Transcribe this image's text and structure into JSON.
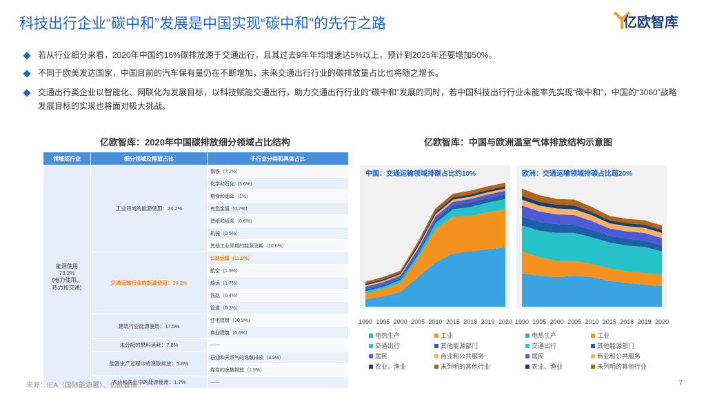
{
  "header": {
    "title": "科技出行企业“碳中和”发展是中国实现“碳中和”的先行之路",
    "logo": "亿欧智库"
  },
  "bullets": [
    "若从行业细分来看，2020年中国约16%碳排放源于交通出行，且其过去9年年均增速达5%以上，预计到2025年还要增加50%。",
    "不同于欧美发达国家，中国目前的汽车保有量仍在不断增加，未来交通出行行业的碳排放量占比也将随之增长。",
    "交通出行类企业以智能化、网联化为发展目标，以科技赋能交通出行，助力交通出行行业的“碳中和”发展的同时，若中国科技出行行业未能率先实现“碳中和”，中国的“3060”战略发展目标的实现也将面对极大挑战。"
  ],
  "left_panel": {
    "title": "亿欧智库：2020年中国碳排放细分领域占比结构"
  },
  "table": {
    "headers": [
      "领域或行业",
      "细分领域及排放占比",
      "子行业分类和具体占比"
    ],
    "first_column": [
      "能源使用",
      "73.2%",
      "(电力使用、",
      "热力和交通)"
    ],
    "groups": [
      {
        "label": "工业领域的能源使用：24.2%",
        "items": [
          "钢铁（7.2%）",
          "化学和石化（3.6%）",
          "粮食和烟草（1%）",
          "有色金属（0.7%）",
          "造纸和纸浆（0.6%）",
          "机械（0.5%）",
          "其他工业领域的能源消耗（10.6%）"
        ]
      },
      {
        "label": "交通运输行业的能源使用：16.2%",
        "items": [
          "公路运输（11.9%）",
          "航空（1.9%）",
          "船运（1.7%）",
          "铁路（0.4%）",
          "管道（0.3%）"
        ]
      },
      {
        "label": "建筑行业能源使用：17.5%",
        "items": [
          "住宅建筑（10.9%）",
          "商业建筑（6.6%）"
        ]
      },
      {
        "label": "未分配的燃料消耗：7.8%",
        "items": [
          "——"
        ]
      },
      {
        "label": "能源生产过程中的逸散排放：5.8%",
        "items": [
          "石油和天然气的逸散排放（3.9%）",
          "煤炭的逸散排放（1.9%）"
        ]
      },
      {
        "label": "农业和渔业中的能源使用：1.7%",
        "items": [
          "——"
        ]
      }
    ]
  },
  "right_panel": {
    "title": "亿欧智库：中国与欧洲温室气体排放结构示意图"
  },
  "chart_data": [
    {
      "type": "area",
      "stacked": true,
      "title": "中国：交通运输领域排碳占比约10%",
      "categories": [
        "1990",
        "1995",
        "2000",
        "2005",
        "2010",
        "2015",
        "2018",
        "2019",
        "2020"
      ],
      "series": [
        {
          "name": "电热生产",
          "color": "#3aa4e3",
          "values": [
            10,
            14,
            20,
            40,
            60,
            72,
            75,
            78,
            80
          ]
        },
        {
          "name": "工业",
          "color": "#f5921f",
          "values": [
            8,
            10,
            12,
            25,
            45,
            50,
            48,
            50,
            52
          ]
        },
        {
          "name": "交通出行",
          "color": "#26c1c9",
          "values": [
            3,
            3,
            4,
            5,
            8,
            10,
            12,
            13,
            14
          ]
        },
        {
          "name": "其他能源部门",
          "color": "#1f5fa8",
          "values": [
            2,
            2,
            2,
            3,
            4,
            5,
            6,
            6,
            6
          ]
        },
        {
          "name": "居民",
          "color": "#4f5bd5",
          "values": [
            4,
            4,
            4,
            5,
            5,
            5,
            5,
            5,
            5
          ]
        },
        {
          "name": "商业和公共服务",
          "color": "#f6b26b",
          "values": [
            2,
            2,
            2,
            3,
            3,
            3,
            3,
            3,
            3
          ]
        },
        {
          "name": "农业、渔业",
          "color": "#17406d",
          "values": [
            2,
            2,
            2,
            3,
            3,
            3,
            3,
            3,
            3
          ]
        },
        {
          "name": "未列明的其他行业",
          "color": "#b0651e",
          "values": [
            3,
            3,
            3,
            4,
            5,
            5,
            5,
            5,
            5
          ]
        }
      ]
    },
    {
      "type": "area",
      "stacked": true,
      "title": "欧洲：交通运输领域排碳占比超20%",
      "categories": [
        "1990",
        "1995",
        "2000",
        "2005",
        "2010",
        "2015",
        "2018",
        "2019",
        "2020"
      ],
      "series": [
        {
          "name": "电热生产",
          "color": "#3aa4e3",
          "values": [
            45,
            42,
            40,
            42,
            40,
            35,
            32,
            30,
            28
          ]
        },
        {
          "name": "工业",
          "color": "#f5921f",
          "values": [
            30,
            25,
            22,
            20,
            18,
            17,
            16,
            16,
            15
          ]
        },
        {
          "name": "交通出行",
          "color": "#26c1c9",
          "values": [
            35,
            36,
            38,
            38,
            36,
            35,
            35,
            35,
            32
          ]
        },
        {
          "name": "其他能源部门",
          "color": "#1f5fa8",
          "values": [
            12,
            12,
            12,
            11,
            10,
            9,
            9,
            9,
            8
          ]
        },
        {
          "name": "居民",
          "color": "#4f5bd5",
          "values": [
            15,
            14,
            13,
            13,
            12,
            10,
            10,
            10,
            10
          ]
        },
        {
          "name": "商业和公共服务",
          "color": "#f6b26b",
          "values": [
            8,
            8,
            8,
            8,
            8,
            7,
            7,
            7,
            7
          ]
        },
        {
          "name": "农业、渔业",
          "color": "#17406d",
          "values": [
            5,
            5,
            5,
            5,
            4,
            4,
            4,
            4,
            4
          ]
        },
        {
          "name": "未列明的其他行业",
          "color": "#b0651e",
          "values": [
            10,
            9,
            8,
            8,
            7,
            6,
            6,
            6,
            6
          ]
        }
      ]
    }
  ],
  "footer": {
    "source": "来源：IEA（国际能源署）、亿欧智库",
    "page": "7"
  }
}
